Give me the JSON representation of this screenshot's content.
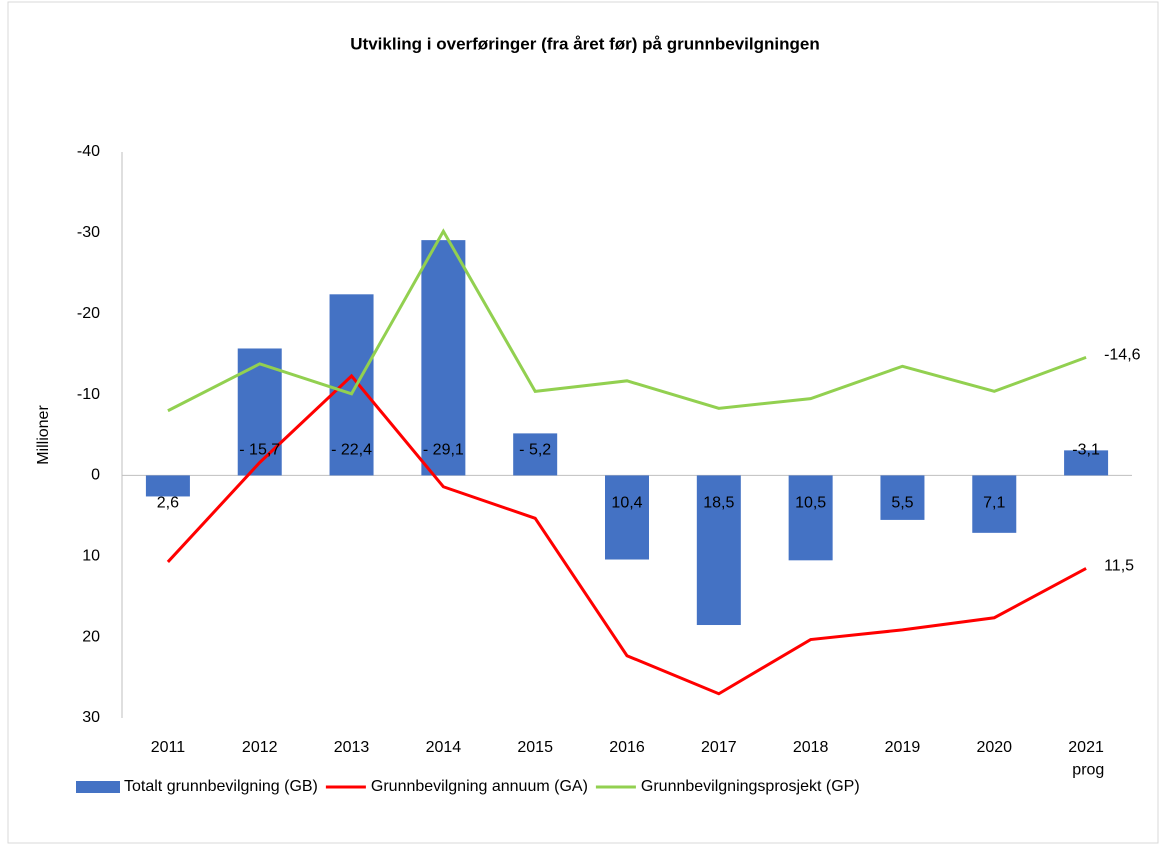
{
  "chart_data": {
    "type": "bar_line",
    "title": "Utvikling i overføringer (fra året før) på grunnbevilgningen",
    "y_label": "Millioner",
    "categories": [
      "2011",
      "2012",
      "2013",
      "2014",
      "2015",
      "2016",
      "2017",
      "2018",
      "2019",
      "2020",
      "2021\nprog"
    ],
    "ylim": [
      -40,
      30
    ],
    "yticks": [
      -40,
      -30,
      -20,
      -10,
      0,
      10,
      20,
      30
    ],
    "y_inverted": true,
    "grid": false,
    "legend": "bottom",
    "series": [
      {
        "name": "Totalt grunnbevilgning (GB)",
        "type": "bar",
        "color": "#4472c4",
        "values": [
          2.6,
          -15.7,
          -22.4,
          -29.1,
          -5.2,
          10.4,
          18.5,
          10.5,
          5.5,
          7.1,
          -3.1
        ],
        "value_labels": [
          "2,6",
          "- 15,7",
          "- 22,4",
          "- 29,1",
          "- 5,2",
          "10,4",
          "18,5",
          "10,5",
          "5,5",
          "7,1",
          "-3,1"
        ]
      },
      {
        "name": "Grunnbevilgning annuum (GA)",
        "type": "line",
        "color": "#ff0000",
        "values": [
          10.7,
          -1.6,
          -12.3,
          1.4,
          5.3,
          22.3,
          27,
          20.3,
          19.1,
          17.6,
          11.5
        ],
        "value_labels": [
          null,
          null,
          null,
          null,
          null,
          null,
          null,
          null,
          null,
          null,
          "11,5"
        ]
      },
      {
        "name": "Grunnbevilgningsprosjekt (GP)",
        "type": "line",
        "color": "#92d050",
        "values": [
          -8.0,
          -13.8,
          -10.1,
          -30.2,
          -10.4,
          -11.7,
          -8.3,
          -9.5,
          -13.5,
          -10.4,
          -14.6
        ],
        "value_labels": [
          null,
          null,
          null,
          null,
          null,
          null,
          null,
          null,
          null,
          null,
          "-14,6"
        ]
      }
    ]
  }
}
